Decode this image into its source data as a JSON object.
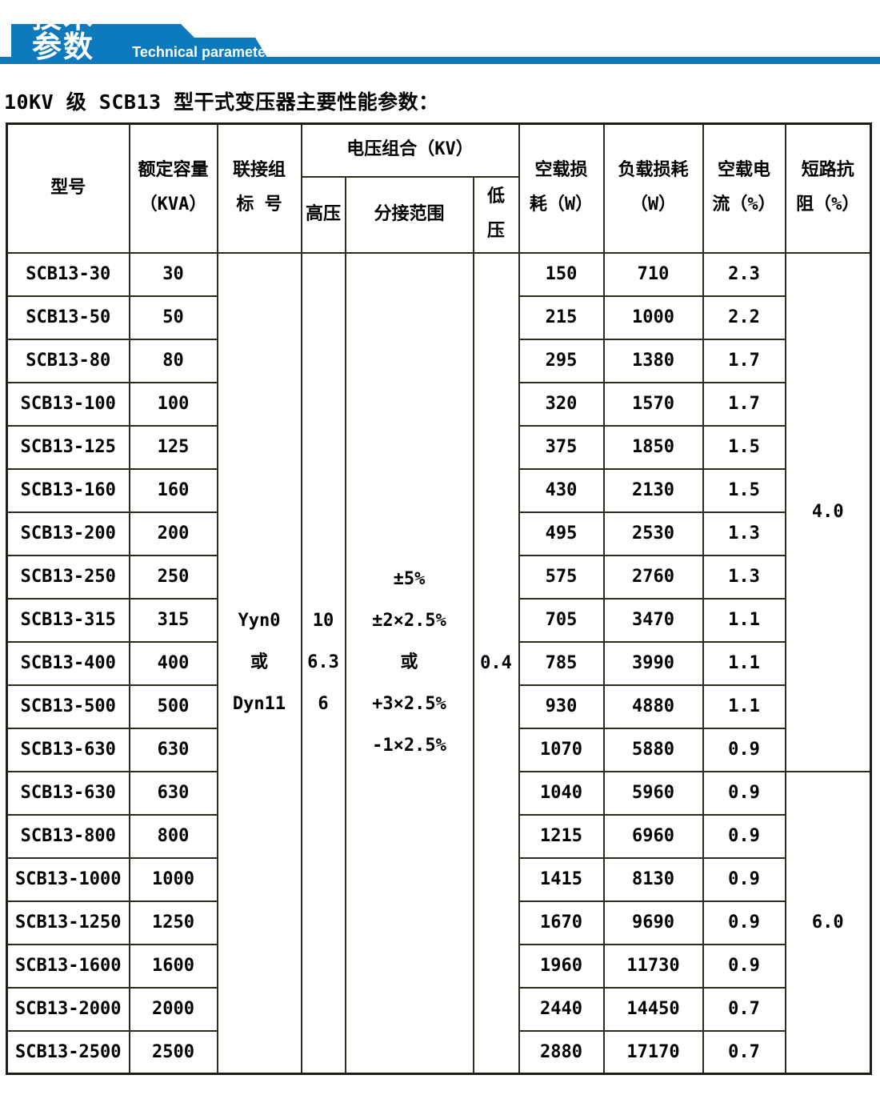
{
  "banner": {
    "title_cn": "技术参数",
    "title_en": "Technical parameter"
  },
  "colors": {
    "banner_blue": "#0e7abe",
    "table_line": "#2e2c1f"
  },
  "page_title": "10KV 级 SCB13 型干式变压器主要性能参数：",
  "table": {
    "headers": {
      "model": "型号",
      "capacity": [
        "额定容量",
        "（KVA）"
      ],
      "connection": [
        "联接组",
        "标 号"
      ],
      "voltage_group": "电压组合（KV）",
      "hv": "高压",
      "tap_range": "分接范围",
      "lv": [
        "低",
        "压"
      ],
      "no_load_loss": [
        "空载损",
        "耗（W）"
      ],
      "load_loss": [
        "负载损耗",
        "（W）"
      ],
      "no_load_current": [
        "空载电",
        "流（%）"
      ],
      "impedance": [
        "短路抗",
        "阻（%）"
      ]
    },
    "merged_cells": {
      "connection_label": [
        "Yyn0",
        "或",
        "Dyn11"
      ],
      "hv_voltages": [
        "10",
        "6.3",
        "6"
      ],
      "tap_range_lines": [
        "±5%",
        "±2×2.5%",
        "或",
        "+3×2.5%",
        "-1×2.5%"
      ],
      "lv_voltage": "0.4",
      "impedance_groups": [
        {
          "value": "4.0",
          "rows": 12
        },
        {
          "value": "6.0",
          "rows": 7
        }
      ]
    },
    "rows": [
      {
        "model": "SCB13-30",
        "capacity": "30",
        "no_load_loss": "150",
        "load_loss": "710",
        "no_load_current": "2.3"
      },
      {
        "model": "SCB13-50",
        "capacity": "50",
        "no_load_loss": "215",
        "load_loss": "1000",
        "no_load_current": "2.2"
      },
      {
        "model": "SCB13-80",
        "capacity": "80",
        "no_load_loss": "295",
        "load_loss": "1380",
        "no_load_current": "1.7"
      },
      {
        "model": "SCB13-100",
        "capacity": "100",
        "no_load_loss": "320",
        "load_loss": "1570",
        "no_load_current": "1.7"
      },
      {
        "model": "SCB13-125",
        "capacity": "125",
        "no_load_loss": "375",
        "load_loss": "1850",
        "no_load_current": "1.5"
      },
      {
        "model": "SCB13-160",
        "capacity": "160",
        "no_load_loss": "430",
        "load_loss": "2130",
        "no_load_current": "1.5"
      },
      {
        "model": "SCB13-200",
        "capacity": "200",
        "no_load_loss": "495",
        "load_loss": "2530",
        "no_load_current": "1.3"
      },
      {
        "model": "SCB13-250",
        "capacity": "250",
        "no_load_loss": "575",
        "load_loss": "2760",
        "no_load_current": "1.3"
      },
      {
        "model": "SCB13-315",
        "capacity": "315",
        "no_load_loss": "705",
        "load_loss": "3470",
        "no_load_current": "1.1"
      },
      {
        "model": "SCB13-400",
        "capacity": "400",
        "no_load_loss": "785",
        "load_loss": "3990",
        "no_load_current": "1.1"
      },
      {
        "model": "SCB13-500",
        "capacity": "500",
        "no_load_loss": "930",
        "load_loss": "4880",
        "no_load_current": "1.1"
      },
      {
        "model": "SCB13-630",
        "capacity": "630",
        "no_load_loss": "1070",
        "load_loss": "5880",
        "no_load_current": "0.9"
      },
      {
        "model": "SCB13-630",
        "capacity": "630",
        "no_load_loss": "1040",
        "load_loss": "5960",
        "no_load_current": "0.9"
      },
      {
        "model": "SCB13-800",
        "capacity": "800",
        "no_load_loss": "1215",
        "load_loss": "6960",
        "no_load_current": "0.9"
      },
      {
        "model": "SCB13-1000",
        "capacity": "1000",
        "no_load_loss": "1415",
        "load_loss": "8130",
        "no_load_current": "0.9"
      },
      {
        "model": "SCB13-1250",
        "capacity": "1250",
        "no_load_loss": "1670",
        "load_loss": "9690",
        "no_load_current": "0.9"
      },
      {
        "model": "SCB13-1600",
        "capacity": "1600",
        "no_load_loss": "1960",
        "load_loss": "11730",
        "no_load_current": "0.9"
      },
      {
        "model": "SCB13-2000",
        "capacity": "2000",
        "no_load_loss": "2440",
        "load_loss": "14450",
        "no_load_current": "0.7"
      },
      {
        "model": "SCB13-2500",
        "capacity": "2500",
        "no_load_loss": "2880",
        "load_loss": "17170",
        "no_load_current": "0.7"
      }
    ]
  }
}
